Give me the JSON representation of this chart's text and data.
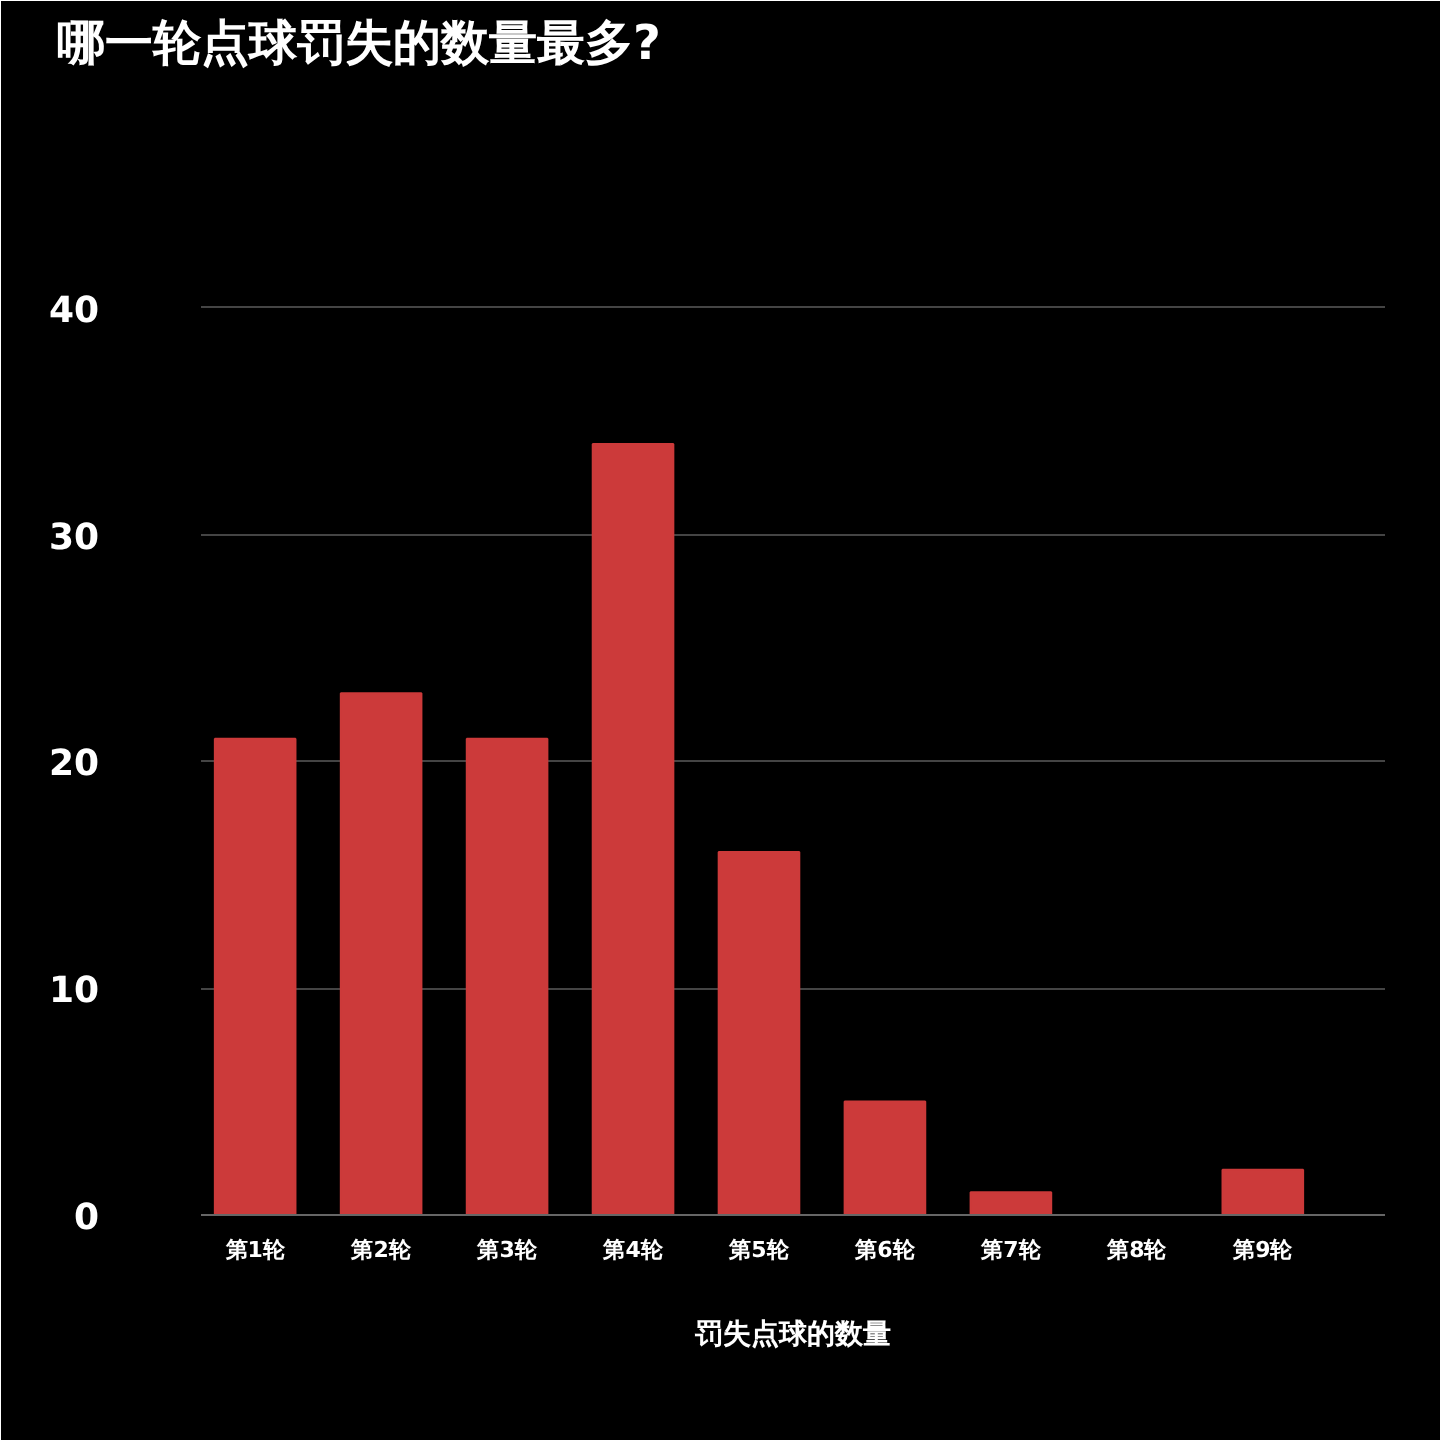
{
  "chart_data": {
    "type": "bar",
    "title": "哪一轮点球罚失的数量最多?",
    "xlabel": "罚失点球的数量",
    "categories": [
      "第1轮",
      "第2轮",
      "第3轮",
      "第4轮",
      "第5轮",
      "第6轮",
      "第7轮",
      "第8轮",
      "第9轮"
    ],
    "values": [
      21,
      23,
      21,
      34,
      16,
      5,
      1,
      0,
      2
    ],
    "color": "#cc3a3a",
    "ylim": [
      0,
      50
    ],
    "yticks": [
      0,
      10,
      20,
      30,
      40
    ],
    "grid": "y"
  }
}
